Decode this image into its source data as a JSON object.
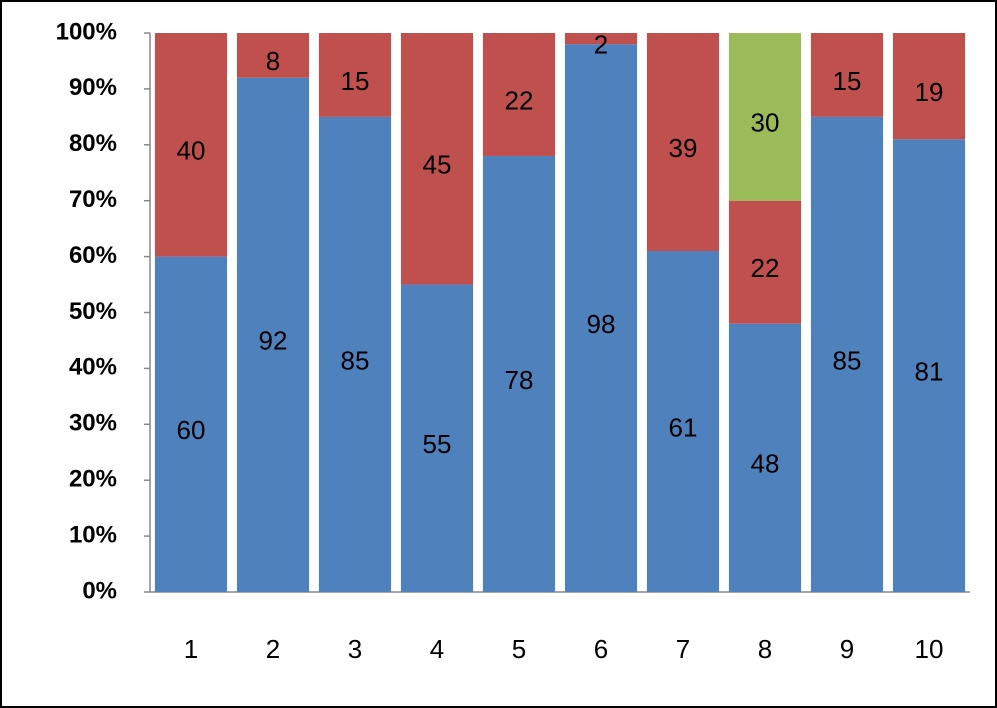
{
  "chart_data": {
    "type": "bar",
    "stacked": true,
    "categories": [
      "1",
      "2",
      "3",
      "4",
      "5",
      "6",
      "7",
      "8",
      "9",
      "10"
    ],
    "series": [
      {
        "color": "#4f81bd",
        "values": [
          60,
          92,
          85,
          55,
          78,
          98,
          61,
          48,
          85,
          81
        ]
      },
      {
        "color": "#c0504d",
        "values": [
          40,
          8,
          15,
          45,
          22,
          2,
          39,
          22,
          15,
          19
        ]
      },
      {
        "color": "#9bbb59",
        "values": [
          null,
          null,
          null,
          null,
          null,
          null,
          null,
          30,
          null,
          null
        ]
      }
    ],
    "ylim": [
      0,
      100
    ],
    "yticks": [
      {
        "value": 0,
        "label": "0%"
      },
      {
        "value": 10,
        "label": "10%"
      },
      {
        "value": 20,
        "label": "20%"
      },
      {
        "value": 30,
        "label": "30%"
      },
      {
        "value": 40,
        "label": "40%"
      },
      {
        "value": 50,
        "label": "50%"
      },
      {
        "value": 60,
        "label": "60%"
      },
      {
        "value": 70,
        "label": "70%"
      },
      {
        "value": 80,
        "label": "80%"
      },
      {
        "value": 90,
        "label": "90%"
      },
      {
        "value": 100,
        "label": "100%"
      }
    ],
    "grid": false
  }
}
